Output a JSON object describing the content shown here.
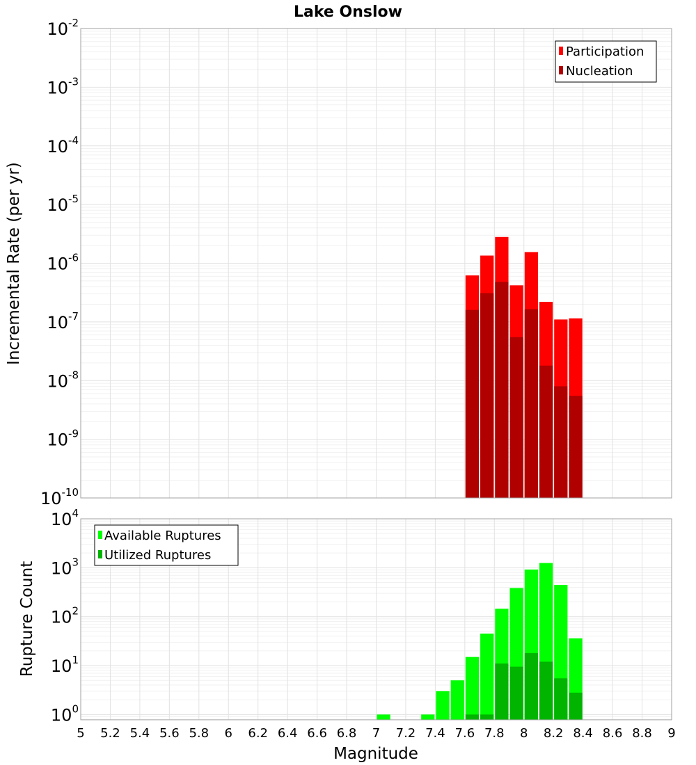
{
  "chart_data": [
    {
      "type": "bar",
      "title": "Lake Onslow",
      "xlabel": "",
      "ylabel": "Incremental Rate (per yr)",
      "xlim": [
        5,
        9
      ],
      "ylim_exponents": [
        -10,
        -2
      ],
      "yscale": "log",
      "y_tick_exponents": [
        -10,
        -9,
        -8,
        -7,
        -6,
        -5,
        -4,
        -3,
        -2
      ],
      "bin_width": 0.1,
      "legend_position": "top-right",
      "series": [
        {
          "name": "Participation",
          "color": "#ff0000",
          "x": [
            7.65,
            7.75,
            7.85,
            7.95,
            8.05,
            8.15,
            8.25,
            8.35
          ],
          "values": [
            6.2e-07,
            1.35e-06,
            2.8e-06,
            4.2e-07,
            1.55e-06,
            2.2e-07,
            1.1e-07,
            1.15e-07
          ]
        },
        {
          "name": "Nucleation",
          "color": "#b00000",
          "x": [
            7.65,
            7.75,
            7.85,
            7.95,
            8.05,
            8.15,
            8.25,
            8.35
          ],
          "values": [
            1.6e-07,
            3.1e-07,
            4.8e-07,
            5.5e-08,
            1.65e-07,
            1.8e-08,
            8e-09,
            5.5e-09
          ]
        }
      ]
    },
    {
      "type": "bar",
      "title": "",
      "xlabel": "Magnitude",
      "ylabel": "Rupture Count",
      "xlim": [
        5,
        9
      ],
      "ylim": [
        0.78,
        10000
      ],
      "yscale": "log",
      "y_tick_exponents": [
        0,
        1,
        2,
        3,
        4
      ],
      "x_ticks": [
        "5",
        "5.2",
        "5.4",
        "5.6",
        "5.8",
        "6",
        "6.2",
        "6.4",
        "6.6",
        "6.8",
        "7",
        "7.2",
        "7.4",
        "7.6",
        "7.8",
        "8",
        "8.2",
        "8.4",
        "8.6",
        "8.8",
        "9"
      ],
      "bin_width": 0.1,
      "legend_position": "top-left",
      "series": [
        {
          "name": "Available Ruptures",
          "color": "#00ff00",
          "x": [
            7.05,
            7.35,
            7.45,
            7.55,
            7.65,
            7.75,
            7.85,
            7.95,
            8.05,
            8.15,
            8.25,
            8.35
          ],
          "values": [
            1,
            1,
            3,
            5,
            15,
            45,
            145,
            385,
            920,
            1250,
            445,
            36
          ]
        },
        {
          "name": "Utilized Ruptures",
          "color": "#00b400",
          "x": [
            7.65,
            7.75,
            7.85,
            7.95,
            8.05,
            8.15,
            8.25,
            8.35
          ],
          "values": [
            1,
            1,
            11,
            9.5,
            18,
            12,
            5.5,
            2.8
          ]
        }
      ]
    }
  ]
}
